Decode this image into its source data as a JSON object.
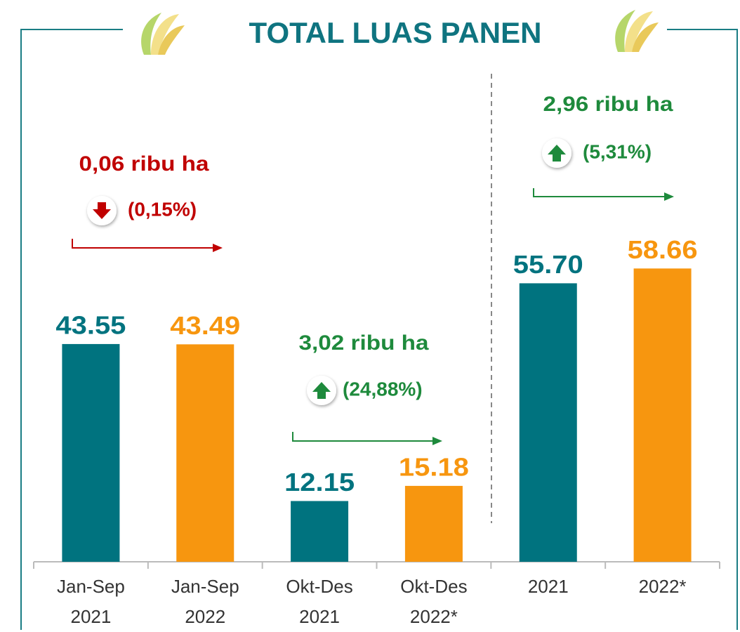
{
  "chart_data": {
    "type": "bar",
    "title": "TOTAL LUAS PANEN",
    "categories": [
      "Jan-Sep 2021",
      "Jan-Sep 2022",
      "Okt-Des 2021",
      "Okt-Des 2022*",
      "2021",
      "2022*"
    ],
    "values": [
      43.55,
      43.49,
      12.15,
      15.18,
      55.7,
      58.66
    ],
    "value_labels": [
      "43.55",
      "43.49",
      "12.15",
      "15.18",
      "55.70",
      "58.66"
    ],
    "colors": [
      "#00737f",
      "#f7960f",
      "#00737f",
      "#f7960f",
      "#00737f",
      "#f7960f"
    ],
    "ylim": [
      0,
      70
    ],
    "annotations": [
      {
        "text": "0,06 ribu ha",
        "change": "(0,15%)",
        "color": "#c00000"
      },
      {
        "text": "3,02 ribu ha",
        "change": "(24,88%)",
        "color": "#1e8a3c"
      },
      {
        "text": "2,96 ribu ha",
        "change": "(5,31%)",
        "color": "#1e8a3c"
      }
    ]
  }
}
